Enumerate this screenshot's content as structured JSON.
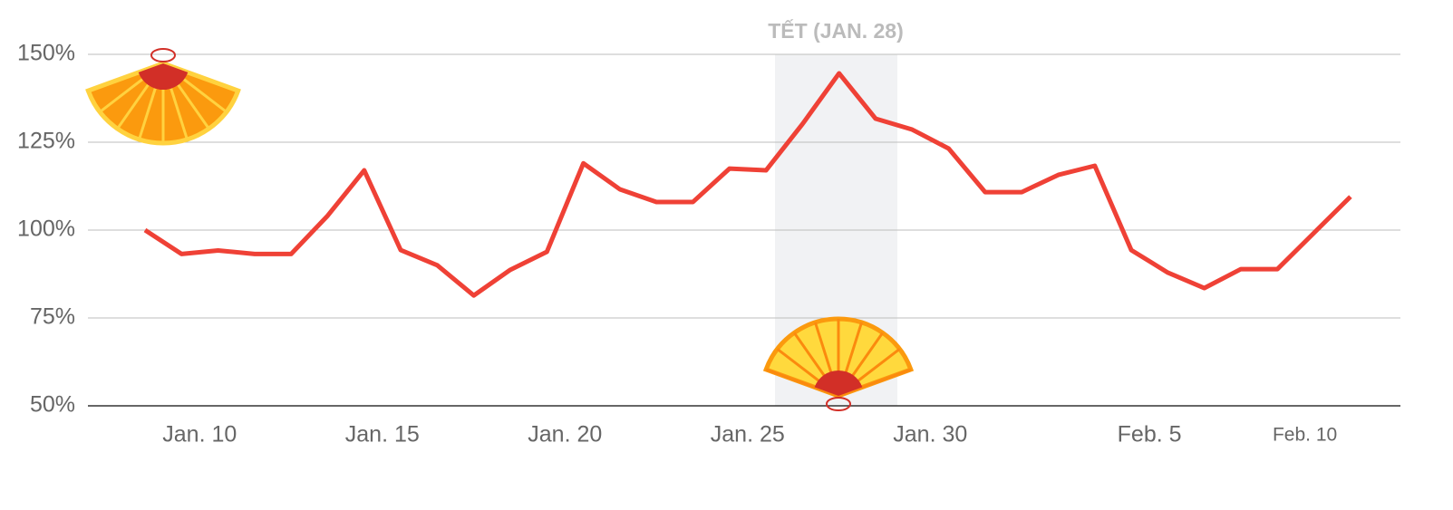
{
  "chart_data": {
    "type": "line",
    "categories": [
      null,
      "Jan. 10",
      null,
      null,
      null,
      null,
      "Jan. 15",
      null,
      null,
      null,
      null,
      "Jan. 20",
      null,
      null,
      null,
      null,
      "Jan. 25",
      null,
      null,
      null,
      null,
      "Jan. 30",
      null,
      null,
      null,
      null,
      null,
      "Feb. 5",
      null,
      null,
      null,
      null,
      "Feb. 10",
      null
    ],
    "series": [
      {
        "color": "#ef4136",
        "values": [
          100,
          93.2,
          94.2,
          93.2,
          93.2,
          104.1,
          117,
          94.3,
          90,
          81.4,
          88.7,
          93.8,
          119,
          111.6,
          108,
          108,
          117.5,
          117,
          130.2,
          144.6,
          131.7,
          128.6,
          123.2,
          110.8,
          110.8,
          115.7,
          118.3,
          94.3,
          87.9,
          83.5,
          88.9,
          88.9,
          99.2,
          109.5
        ]
      }
    ],
    "ylim": [
      50,
      150
    ],
    "yticks": [
      {
        "value": 50,
        "label": "50%"
      },
      {
        "value": 75,
        "label": "75%"
      },
      {
        "value": 100,
        "label": "100%"
      },
      {
        "value": 125,
        "label": "125%"
      },
      {
        "value": 150,
        "label": "150%"
      }
    ],
    "grid": true,
    "annotation": "TẾT (JAN. 28)"
  }
}
